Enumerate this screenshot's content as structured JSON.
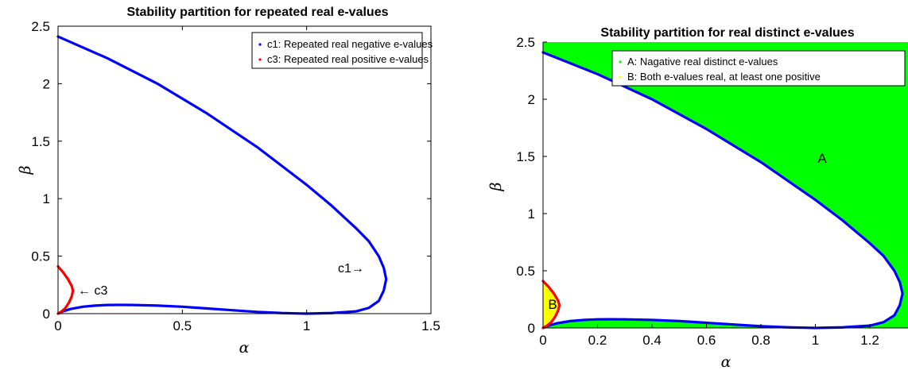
{
  "chart_data": [
    {
      "type": "line",
      "title": "Stability partition for repeated real e-values",
      "xlabel": "α",
      "ylabel": "β",
      "xlim": [
        0,
        1.5
      ],
      "ylim": [
        0,
        2.5
      ],
      "xticks": [
        "0",
        "0.5",
        "1",
        "1.5"
      ],
      "yticks": [
        "0",
        "0.5",
        "1",
        "1.5",
        "2",
        "2.5"
      ],
      "grid": false,
      "legend_position": "top-right",
      "legend": [
        {
          "label": "c1: Repeated real negative e-values",
          "color": "#0000ff"
        },
        {
          "label": "c3: Repeated real positive e-values",
          "color": "#ff0000"
        }
      ],
      "annotations": [
        {
          "text": "c1→",
          "x": 1.2,
          "y": 0.37
        },
        {
          "text": "← c3",
          "x": 0.08,
          "y": 0.19
        }
      ],
      "series": [
        {
          "color": "#0000ff",
          "points": [
            [
              0,
              2.41
            ],
            [
              0.2,
              2.22
            ],
            [
              0.4,
              2.0
            ],
            [
              0.6,
              1.74
            ],
            [
              0.8,
              1.45
            ],
            [
              1.0,
              1.12
            ],
            [
              1.1,
              0.94
            ],
            [
              1.2,
              0.74
            ],
            [
              1.25,
              0.63
            ],
            [
              1.29,
              0.5
            ],
            [
              1.31,
              0.4
            ],
            [
              1.32,
              0.3
            ],
            [
              1.31,
              0.2
            ],
            [
              1.29,
              0.11
            ],
            [
              1.25,
              0.05
            ],
            [
              1.2,
              0.02
            ],
            [
              1.1,
              0.005
            ],
            [
              1.0,
              0.0
            ],
            [
              0.9,
              0.005
            ],
            [
              0.8,
              0.015
            ],
            [
              0.7,
              0.03
            ],
            [
              0.6,
              0.045
            ],
            [
              0.5,
              0.06
            ],
            [
              0.4,
              0.07
            ],
            [
              0.3,
              0.075
            ],
            [
              0.25,
              0.076
            ],
            [
              0.2,
              0.075
            ],
            [
              0.15,
              0.07
            ],
            [
              0.1,
              0.06
            ],
            [
              0.05,
              0.04
            ],
            [
              0.02,
              0.02
            ],
            [
              0,
              0
            ]
          ]
        },
        {
          "color": "#ff0000",
          "points": [
            [
              0,
              0.41
            ],
            [
              0.02,
              0.36
            ],
            [
              0.04,
              0.3
            ],
            [
              0.055,
              0.24
            ],
            [
              0.06,
              0.2
            ],
            [
              0.055,
              0.15
            ],
            [
              0.045,
              0.1
            ],
            [
              0.03,
              0.05
            ],
            [
              0.015,
              0.02
            ],
            [
              0,
              0
            ]
          ]
        }
      ]
    },
    {
      "type": "area",
      "title": "Stability partition for real distinct e-values",
      "xlabel": "α",
      "ylabel": "β",
      "xlim": [
        0,
        1.34
      ],
      "ylim": [
        0,
        2.5
      ],
      "xticks": [
        "0",
        "0.2",
        "0.4",
        "0.6",
        "0.8",
        "1",
        "1.2"
      ],
      "yticks": [
        "0",
        "0.5",
        "1",
        "1.5",
        "2",
        "2.5"
      ],
      "grid": false,
      "legend_position": "top-right",
      "legend": [
        {
          "label": "A: Nagative real distinct e-values",
          "color": "#00ff00"
        },
        {
          "label": "B: Both e-values real, at least one positive",
          "color": "#ffff00"
        }
      ],
      "region_labels": [
        {
          "text": "A",
          "x": 1.03,
          "y": 1.48
        },
        {
          "text": "B",
          "x": 0.04,
          "y": 0.21
        }
      ],
      "region_colors": {
        "A": "#00ff00",
        "B": "#ffff00"
      },
      "series": [
        {
          "color": "#0000ff",
          "points": [
            [
              0,
              2.41
            ],
            [
              0.2,
              2.22
            ],
            [
              0.4,
              2.0
            ],
            [
              0.6,
              1.74
            ],
            [
              0.8,
              1.45
            ],
            [
              1.0,
              1.12
            ],
            [
              1.1,
              0.94
            ],
            [
              1.2,
              0.74
            ],
            [
              1.25,
              0.63
            ],
            [
              1.29,
              0.5
            ],
            [
              1.31,
              0.4
            ],
            [
              1.32,
              0.3
            ],
            [
              1.31,
              0.2
            ],
            [
              1.29,
              0.11
            ],
            [
              1.25,
              0.05
            ],
            [
              1.2,
              0.02
            ],
            [
              1.1,
              0.005
            ],
            [
              1.0,
              0.0
            ],
            [
              0.9,
              0.005
            ],
            [
              0.8,
              0.015
            ],
            [
              0.7,
              0.03
            ],
            [
              0.6,
              0.045
            ],
            [
              0.5,
              0.06
            ],
            [
              0.4,
              0.07
            ],
            [
              0.3,
              0.075
            ],
            [
              0.25,
              0.076
            ],
            [
              0.2,
              0.075
            ],
            [
              0.15,
              0.07
            ],
            [
              0.1,
              0.06
            ],
            [
              0.05,
              0.04
            ],
            [
              0.02,
              0.02
            ],
            [
              0,
              0
            ]
          ]
        },
        {
          "color": "#ff0000",
          "points": [
            [
              0,
              0.41
            ],
            [
              0.02,
              0.36
            ],
            [
              0.04,
              0.3
            ],
            [
              0.055,
              0.24
            ],
            [
              0.06,
              0.2
            ],
            [
              0.055,
              0.15
            ],
            [
              0.045,
              0.1
            ],
            [
              0.03,
              0.05
            ],
            [
              0.015,
              0.02
            ],
            [
              0,
              0
            ]
          ]
        }
      ]
    }
  ]
}
